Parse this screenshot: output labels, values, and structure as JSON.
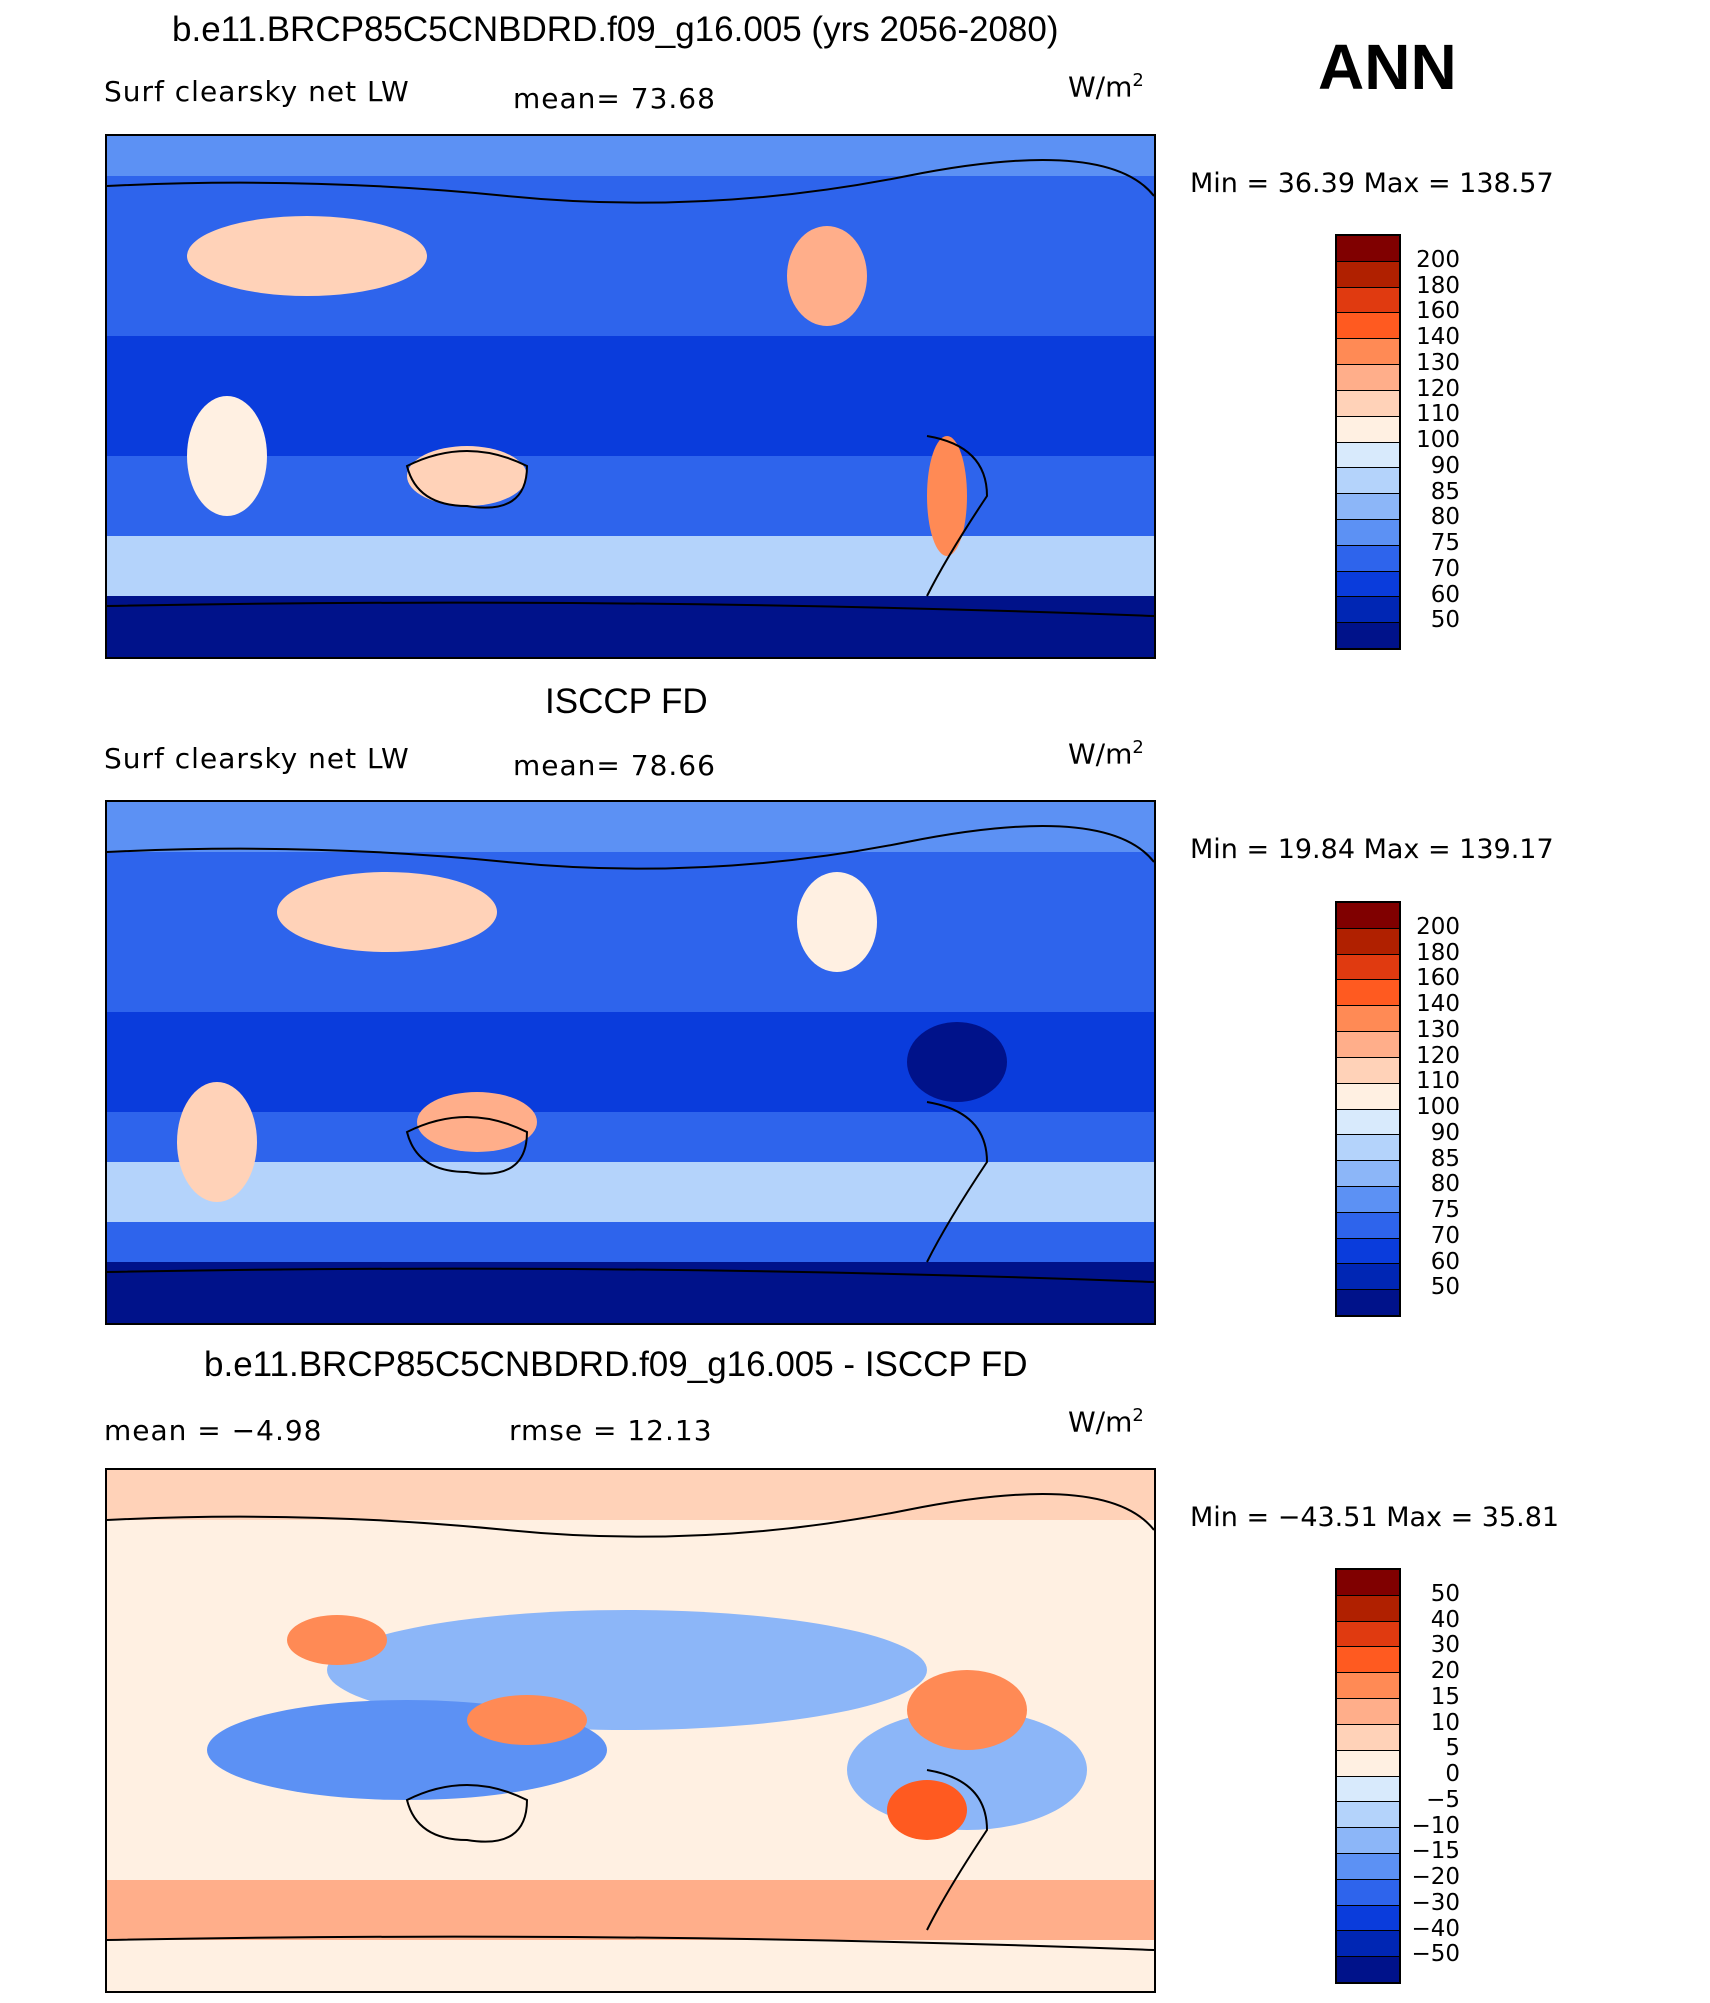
{
  "season": "ANN",
  "units_label": "W/m",
  "units_exp": "2",
  "panels": [
    {
      "title": "b.e11.BRCP85C5CNBDRD.f09_g16.005 (yrs 2056-2080)",
      "left_label": "Surf clearsky net LW",
      "stat_label": "mean=  73.68",
      "minmax": "Min =  36.39 Max = 138.57",
      "colorbar": {
        "labels": [
          "200",
          "180",
          "160",
          "140",
          "130",
          "120",
          "110",
          "100",
          "90",
          "85",
          "80",
          "75",
          "70",
          "60",
          "50"
        ],
        "colors": [
          "#800000",
          "#b02000",
          "#e03a10",
          "#ff5a20",
          "#ff8a55",
          "#ffae8a",
          "#ffd2b8",
          "#fff0e2",
          "#d8eafc",
          "#b4d3fb",
          "#8cb6f8",
          "#5c91f4",
          "#2e64ec",
          "#0a3cdc",
          "#0026b4",
          "#00128a"
        ]
      }
    },
    {
      "title": "ISCCP FD",
      "left_label": "Surf clearsky net LW",
      "stat_label": "mean=  78.66",
      "minmax": "Min =  19.84 Max = 139.17",
      "colorbar": {
        "labels": [
          "200",
          "180",
          "160",
          "140",
          "130",
          "120",
          "110",
          "100",
          "90",
          "85",
          "80",
          "75",
          "70",
          "60",
          "50"
        ],
        "colors": [
          "#800000",
          "#b02000",
          "#e03a10",
          "#ff5a20",
          "#ff8a55",
          "#ffae8a",
          "#ffd2b8",
          "#fff0e2",
          "#d8eafc",
          "#b4d3fb",
          "#8cb6f8",
          "#5c91f4",
          "#2e64ec",
          "#0a3cdc",
          "#0026b4",
          "#00128a"
        ]
      }
    },
    {
      "title": "b.e11.BRCP85C5CNBDRD.f09_g16.005 - ISCCP FD",
      "left_label": "mean =  −4.98",
      "stat_label": "rmse =  12.13",
      "minmax": "Min = −43.51 Max =  35.81",
      "colorbar": {
        "labels": [
          "50",
          "40",
          "30",
          "20",
          "15",
          "10",
          "5",
          "0",
          "−5",
          "−10",
          "−15",
          "−20",
          "−30",
          "−40",
          "−50"
        ],
        "colors": [
          "#800000",
          "#b02000",
          "#e03a10",
          "#ff5a20",
          "#ff8a55",
          "#ffae8a",
          "#ffd2b8",
          "#fff0e2",
          "#d8eafc",
          "#b4d3fb",
          "#8cb6f8",
          "#5c91f4",
          "#2e64ec",
          "#0a3cdc",
          "#0026b4",
          "#00128a"
        ]
      }
    }
  ]
}
